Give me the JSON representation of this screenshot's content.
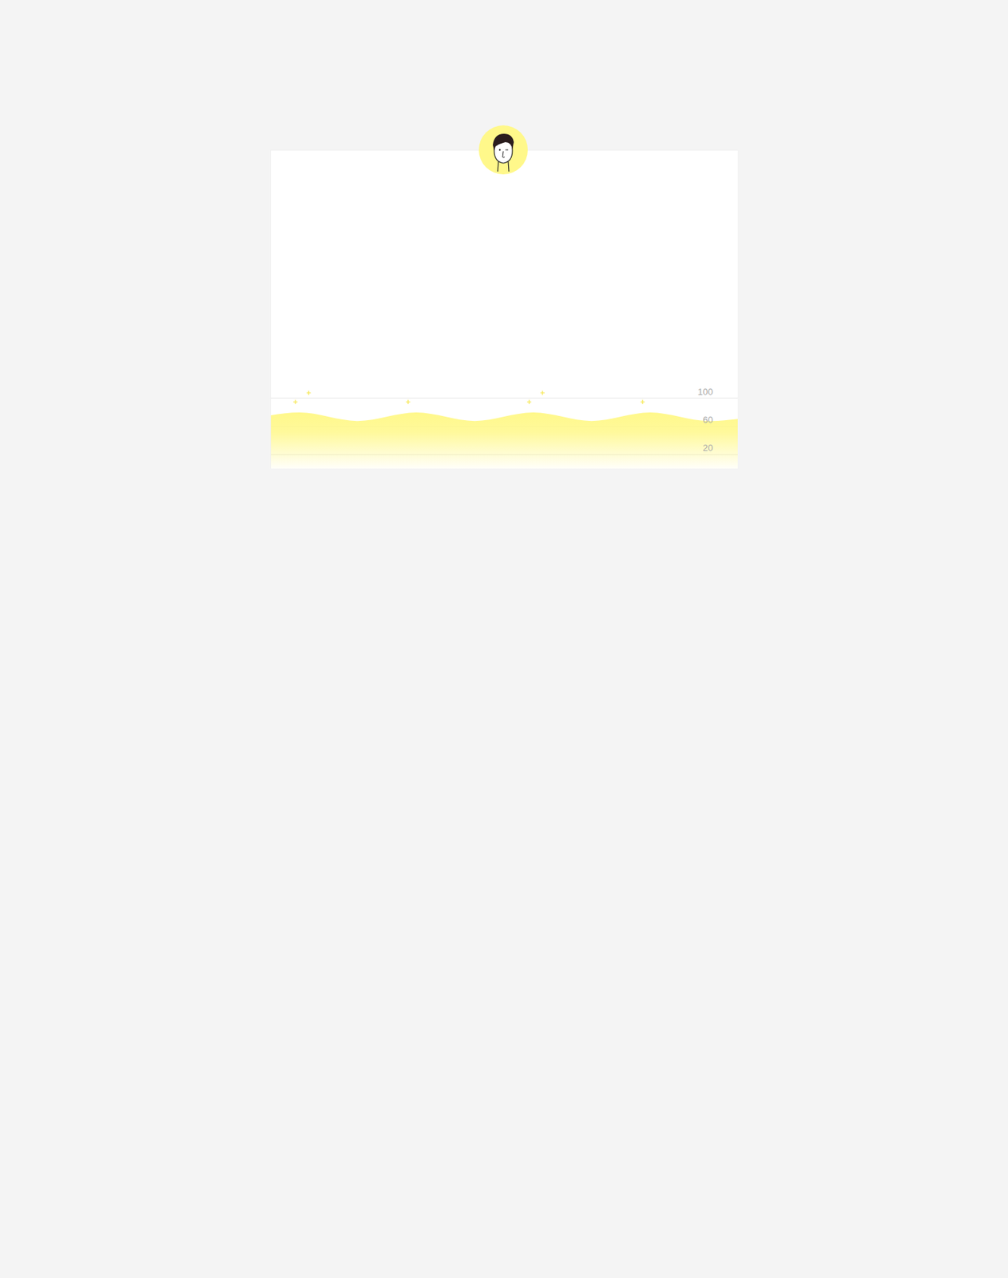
{
  "chart_data": {
    "type": "area",
    "x": [
      0,
      0.5,
      1.5,
      2.5,
      3.5,
      4.5,
      5.5,
      6.5,
      7.5,
      8
    ],
    "values": [
      75,
      79,
      67,
      79,
      67,
      79,
      67,
      79,
      67,
      70
    ],
    "color": "#fff88a",
    "xlim": [
      0,
      8
    ],
    "ylim": [
      0,
      450
    ],
    "yticks": [
      20,
      60,
      100
    ],
    "grid": true,
    "tick_labels": "y"
  }
}
